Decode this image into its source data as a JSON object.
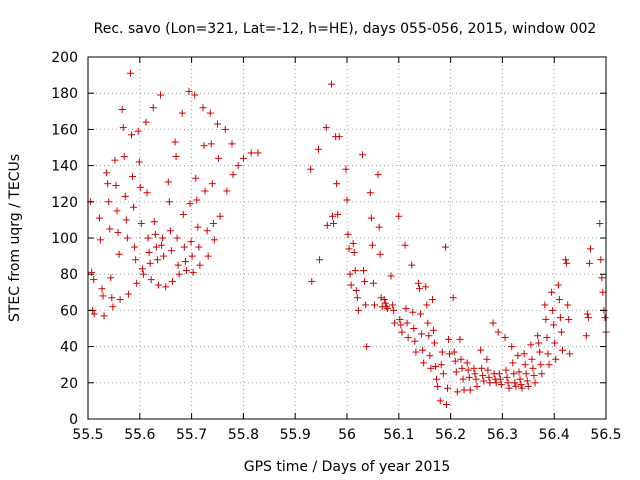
{
  "chart_data": {
    "type": "scatter",
    "title": "Rec. savo (Lon=321, Lat=-12, h=HE), days 055-056, 2015, window 002",
    "xlabel": "GPS time / Days of year 2015",
    "ylabel": "STEC from uqrg / TECUs",
    "xlim": [
      55.5,
      56.5
    ],
    "ylim": [
      0,
      200
    ],
    "xticks": [
      "55.5",
      "55.6",
      "55.7",
      "55.8",
      "55.9",
      "56",
      "56.1",
      "56.2",
      "56.3",
      "56.4",
      "56.5"
    ],
    "yticks": [
      "0",
      "20",
      "40",
      "60",
      "80",
      "100",
      "120",
      "140",
      "160",
      "180",
      "200"
    ],
    "grid": true,
    "marker": "+",
    "color": "#cc0000",
    "series": [
      {
        "name": "STEC",
        "points": [
          [
            55.505,
            120
          ],
          [
            55.507,
            81
          ],
          [
            55.509,
            60
          ],
          [
            55.511,
            77
          ],
          [
            55.512,
            58
          ],
          [
            55.522,
            111
          ],
          [
            55.524,
            99
          ],
          [
            55.527,
            72
          ],
          [
            55.529,
            68
          ],
          [
            55.531,
            57
          ],
          [
            55.536,
            136
          ],
          [
            55.538,
            130
          ],
          [
            55.54,
            120
          ],
          [
            55.542,
            105
          ],
          [
            55.544,
            78
          ],
          [
            55.546,
            67
          ],
          [
            55.548,
            62
          ],
          [
            55.552,
            143
          ],
          [
            55.554,
            129
          ],
          [
            55.556,
            115
          ],
          [
            55.558,
            103
          ],
          [
            55.56,
            91
          ],
          [
            55.562,
            66
          ],
          [
            55.566,
            171
          ],
          [
            55.568,
            161
          ],
          [
            55.57,
            145
          ],
          [
            55.572,
            123
          ],
          [
            55.574,
            110
          ],
          [
            55.576,
            100
          ],
          [
            55.578,
            69
          ],
          [
            55.582,
            191
          ],
          [
            55.584,
            157
          ],
          [
            55.586,
            134
          ],
          [
            55.588,
            117
          ],
          [
            55.59,
            95
          ],
          [
            55.592,
            88
          ],
          [
            55.594,
            75
          ],
          [
            55.597,
            159
          ],
          [
            55.599,
            142
          ],
          [
            55.601,
            128
          ],
          [
            55.603,
            108
          ],
          [
            55.605,
            83
          ],
          [
            55.607,
            80
          ],
          [
            55.612,
            164
          ],
          [
            55.614,
            125
          ],
          [
            55.616,
            100
          ],
          [
            55.618,
            92
          ],
          [
            55.62,
            86
          ],
          [
            55.622,
            77
          ],
          [
            55.626,
            172
          ],
          [
            55.628,
            109
          ],
          [
            55.63,
            102
          ],
          [
            55.632,
            95
          ],
          [
            55.634,
            88
          ],
          [
            55.636,
            74
          ],
          [
            55.64,
            179
          ],
          [
            55.642,
            96
          ],
          [
            55.644,
            100
          ],
          [
            55.646,
            90
          ],
          [
            55.65,
            73
          ],
          [
            55.655,
            131
          ],
          [
            55.657,
            120
          ],
          [
            55.659,
            104
          ],
          [
            55.661,
            93
          ],
          [
            55.663,
            76
          ],
          [
            55.668,
            153
          ],
          [
            55.67,
            145
          ],
          [
            55.672,
            100
          ],
          [
            55.674,
            85
          ],
          [
            55.676,
            80
          ],
          [
            55.682,
            169
          ],
          [
            55.684,
            113
          ],
          [
            55.686,
            95
          ],
          [
            55.688,
            87
          ],
          [
            55.69,
            82
          ],
          [
            55.695,
            181
          ],
          [
            55.697,
            119
          ],
          [
            55.699,
            98
          ],
          [
            55.701,
            90
          ],
          [
            55.703,
            81
          ],
          [
            55.706,
            179
          ],
          [
            55.708,
            133
          ],
          [
            55.71,
            121
          ],
          [
            55.712,
            106
          ],
          [
            55.714,
            95
          ],
          [
            55.716,
            85
          ],
          [
            55.722,
            172
          ],
          [
            55.724,
            151
          ],
          [
            55.726,
            126
          ],
          [
            55.73,
            104
          ],
          [
            55.732,
            90
          ],
          [
            55.736,
            169
          ],
          [
            55.738,
            152
          ],
          [
            55.74,
            130
          ],
          [
            55.742,
            108
          ],
          [
            55.744,
            99
          ],
          [
            55.75,
            163
          ],
          [
            55.752,
            144
          ],
          [
            55.755,
            112
          ],
          [
            55.765,
            160
          ],
          [
            55.768,
            126
          ],
          [
            55.778,
            152
          ],
          [
            55.78,
            135
          ],
          [
            55.79,
            140
          ],
          [
            55.8,
            144
          ],
          [
            55.815,
            147
          ],
          [
            55.828,
            147
          ],
          [
            55.93,
            138
          ],
          [
            55.932,
            76
          ],
          [
            55.945,
            149
          ],
          [
            55.947,
            88
          ],
          [
            55.96,
            161
          ],
          [
            55.962,
            107
          ],
          [
            55.97,
            185
          ],
          [
            55.972,
            112
          ],
          [
            55.974,
            108
          ],
          [
            55.978,
            156
          ],
          [
            55.98,
            130
          ],
          [
            55.982,
            113
          ],
          [
            55.985,
            156
          ],
          [
            55.998,
            138
          ],
          [
            56.0,
            121
          ],
          [
            56.002,
            102
          ],
          [
            56.004,
            94
          ],
          [
            56.006,
            80
          ],
          [
            56.008,
            74
          ],
          [
            56.012,
            97
          ],
          [
            56.014,
            92
          ],
          [
            56.016,
            82
          ],
          [
            56.018,
            71
          ],
          [
            56.02,
            67
          ],
          [
            56.022,
            60
          ],
          [
            56.03,
            146
          ],
          [
            56.032,
            82
          ],
          [
            56.034,
            76
          ],
          [
            56.036,
            63
          ],
          [
            56.038,
            40
          ],
          [
            56.045,
            125
          ],
          [
            56.047,
            111
          ],
          [
            56.049,
            96
          ],
          [
            56.051,
            75
          ],
          [
            56.053,
            63
          ],
          [
            56.06,
            135
          ],
          [
            56.062,
            106
          ],
          [
            56.064,
            91
          ],
          [
            56.066,
            67
          ],
          [
            56.068,
            62
          ],
          [
            56.072,
            66
          ],
          [
            56.074,
            64
          ],
          [
            56.076,
            62
          ],
          [
            56.078,
            61
          ],
          [
            56.085,
            79
          ],
          [
            56.088,
            63
          ],
          [
            56.09,
            60
          ],
          [
            56.092,
            53
          ],
          [
            56.1,
            112
          ],
          [
            56.102,
            55
          ],
          [
            56.104,
            52
          ],
          [
            56.106,
            48
          ],
          [
            56.112,
            96
          ],
          [
            56.114,
            61
          ],
          [
            56.116,
            53
          ],
          [
            56.118,
            45
          ],
          [
            56.125,
            85
          ],
          [
            56.127,
            59
          ],
          [
            56.129,
            50
          ],
          [
            56.131,
            43
          ],
          [
            56.133,
            37
          ],
          [
            56.138,
            75
          ],
          [
            56.14,
            72
          ],
          [
            56.142,
            58
          ],
          [
            56.144,
            47
          ],
          [
            56.146,
            38
          ],
          [
            56.148,
            31
          ],
          [
            56.152,
            73
          ],
          [
            56.154,
            63
          ],
          [
            56.156,
            53
          ],
          [
            56.158,
            46
          ],
          [
            56.16,
            35
          ],
          [
            56.162,
            28
          ],
          [
            56.165,
            66
          ],
          [
            56.167,
            49
          ],
          [
            56.169,
            42
          ],
          [
            56.171,
            29
          ],
          [
            56.173,
            22
          ],
          [
            56.175,
            18
          ],
          [
            56.18,
            10
          ],
          [
            56.182,
            30
          ],
          [
            56.184,
            37
          ],
          [
            56.186,
            25
          ],
          [
            56.19,
            95
          ],
          [
            56.192,
            8
          ],
          [
            56.194,
            17
          ],
          [
            56.196,
            44
          ],
          [
            56.198,
            36
          ],
          [
            56.205,
            67
          ],
          [
            56.207,
            37
          ],
          [
            56.209,
            32
          ],
          [
            56.211,
            26
          ],
          [
            56.213,
            15
          ],
          [
            56.218,
            44
          ],
          [
            56.22,
            33
          ],
          [
            56.222,
            28
          ],
          [
            56.224,
            22
          ],
          [
            56.226,
            16
          ],
          [
            56.232,
            31
          ],
          [
            56.234,
            27
          ],
          [
            56.236,
            23
          ],
          [
            56.238,
            16
          ],
          [
            56.245,
            28
          ],
          [
            56.247,
            25
          ],
          [
            56.249,
            22
          ],
          [
            56.251,
            18
          ],
          [
            56.258,
            38
          ],
          [
            56.26,
            28
          ],
          [
            56.262,
            24
          ],
          [
            56.264,
            21
          ],
          [
            56.27,
            33
          ],
          [
            56.272,
            27
          ],
          [
            56.274,
            23
          ],
          [
            56.276,
            20
          ],
          [
            56.282,
            53
          ],
          [
            56.284,
            25
          ],
          [
            56.286,
            22
          ],
          [
            56.288,
            20
          ],
          [
            56.292,
            48
          ],
          [
            56.294,
            25
          ],
          [
            56.296,
            22
          ],
          [
            56.298,
            19
          ],
          [
            56.305,
            45
          ],
          [
            56.307,
            27
          ],
          [
            56.309,
            23
          ],
          [
            56.311,
            20
          ],
          [
            56.313,
            17
          ],
          [
            56.318,
            40
          ],
          [
            56.32,
            31
          ],
          [
            56.322,
            25
          ],
          [
            56.324,
            20
          ],
          [
            56.326,
            18
          ],
          [
            56.33,
            35
          ],
          [
            56.332,
            26
          ],
          [
            56.334,
            22
          ],
          [
            56.336,
            19
          ],
          [
            56.338,
            17
          ],
          [
            56.342,
            36
          ],
          [
            56.344,
            30
          ],
          [
            56.346,
            25
          ],
          [
            56.348,
            21
          ],
          [
            56.35,
            18
          ],
          [
            56.355,
            41
          ],
          [
            56.357,
            33
          ],
          [
            56.359,
            28
          ],
          [
            56.361,
            24
          ],
          [
            56.363,
            20
          ],
          [
            56.368,
            46
          ],
          [
            56.37,
            42
          ],
          [
            56.372,
            37
          ],
          [
            56.374,
            30
          ],
          [
            56.376,
            25
          ],
          [
            56.382,
            63
          ],
          [
            56.384,
            55
          ],
          [
            56.386,
            45
          ],
          [
            56.388,
            36
          ],
          [
            56.39,
            30
          ],
          [
            56.395,
            70
          ],
          [
            56.397,
            60
          ],
          [
            56.399,
            52
          ],
          [
            56.401,
            42
          ],
          [
            56.403,
            33
          ],
          [
            56.408,
            74
          ],
          [
            56.41,
            66
          ],
          [
            56.412,
            56
          ],
          [
            56.414,
            48
          ],
          [
            56.416,
            38
          ],
          [
            56.422,
            88
          ],
          [
            56.424,
            86
          ],
          [
            56.426,
            63
          ],
          [
            56.428,
            55
          ],
          [
            56.43,
            36
          ],
          [
            56.462,
            46
          ],
          [
            56.464,
            58
          ],
          [
            56.466,
            56
          ],
          [
            56.468,
            86
          ],
          [
            56.47,
            94
          ],
          [
            56.488,
            108
          ],
          [
            56.49,
            88
          ],
          [
            56.492,
            78
          ],
          [
            56.494,
            70
          ],
          [
            56.496,
            60
          ],
          [
            56.498,
            56
          ],
          [
            56.5,
            48
          ]
        ]
      }
    ]
  }
}
